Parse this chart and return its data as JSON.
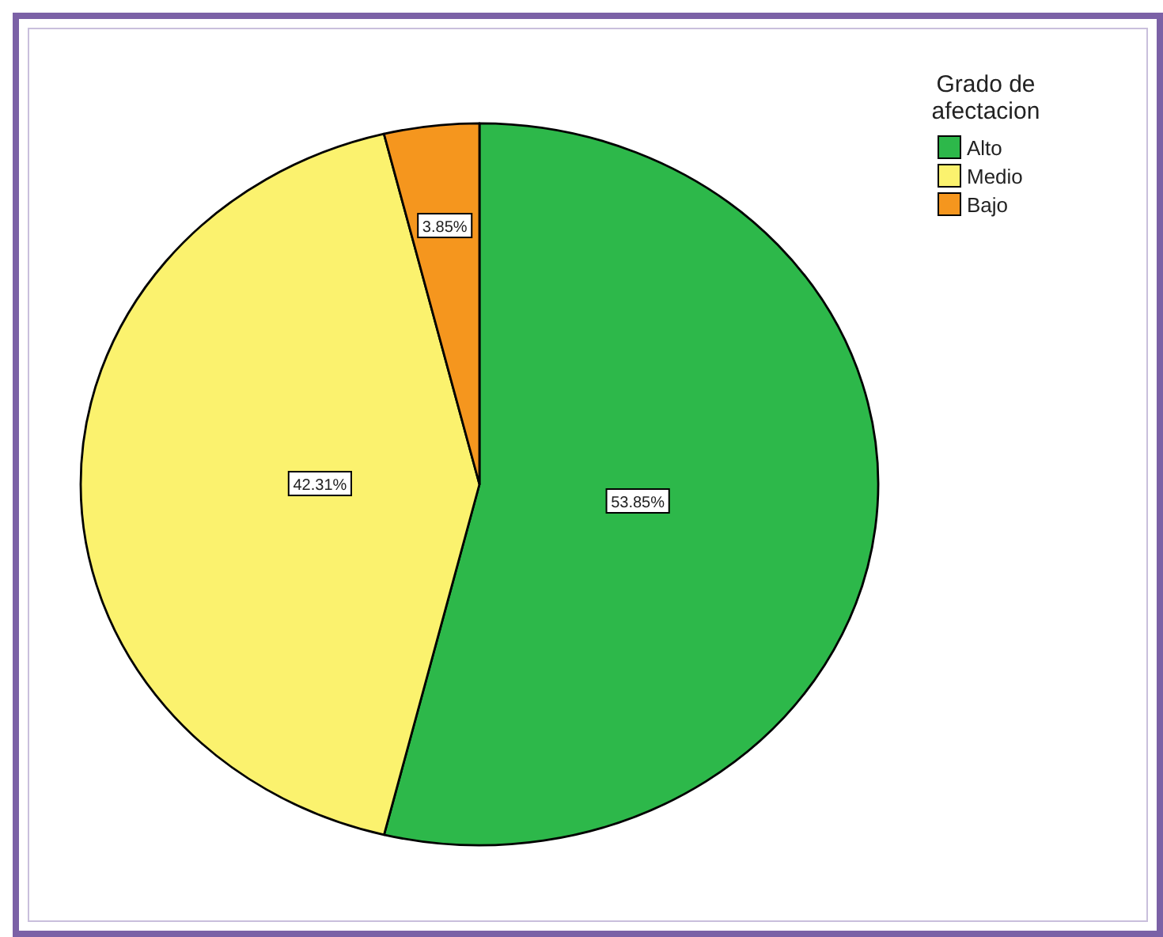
{
  "chart_data": {
    "type": "pie",
    "legend_title": "Grado de afectacion",
    "categories": [
      "Alto",
      "Medio",
      "Bajo"
    ],
    "values": [
      53.85,
      42.31,
      3.85
    ],
    "colors": [
      "#2db84a",
      "#fbf26e",
      "#f5961e"
    ],
    "value_labels": [
      "53.85%",
      "42.31%",
      "3.85%"
    ],
    "legend": "top right"
  }
}
